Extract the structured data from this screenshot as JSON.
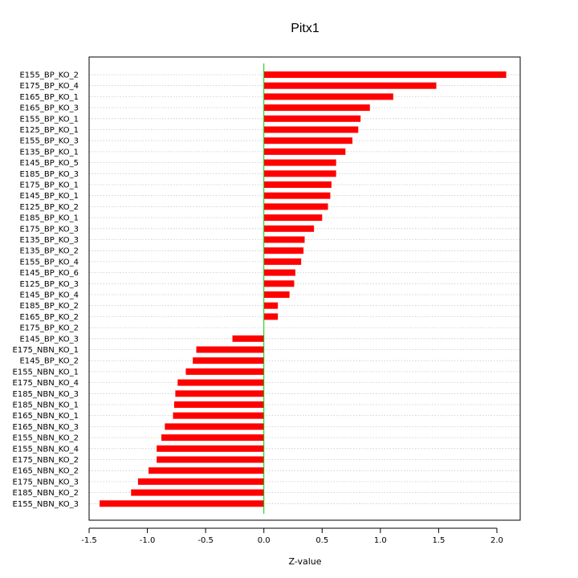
{
  "chart_data": {
    "type": "bar",
    "orientation": "horizontal",
    "title": "Pitx1",
    "xlabel": "Z-value",
    "ylabel": "",
    "xlim": [
      -1.5,
      2.2
    ],
    "xticks": [
      "-1.5",
      "-1.0",
      "-0.5",
      "0.0",
      "0.5",
      "1.0",
      "1.5",
      "2.0"
    ],
    "xtick_values": [
      -1.5,
      -1.0,
      -0.5,
      0.0,
      0.5,
      1.0,
      1.5,
      2.0
    ],
    "grid": "horizontal dotted",
    "bar_color": "#ff0000",
    "zero_line_color": "#00cc00",
    "categories": [
      "E155_BP_KO_2",
      "E175_BP_KO_4",
      "E165_BP_KO_1",
      "E165_BP_KO_3",
      "E155_BP_KO_1",
      "E125_BP_KO_1",
      "E155_BP_KO_3",
      "E135_BP_KO_1",
      "E145_BP_KO_5",
      "E185_BP_KO_3",
      "E175_BP_KO_1",
      "E145_BP_KO_1",
      "E125_BP_KO_2",
      "E185_BP_KO_1",
      "E175_BP_KO_3",
      "E135_BP_KO_3",
      "E135_BP_KO_2",
      "E155_BP_KO_4",
      "E145_BP_KO_6",
      "E125_BP_KO_3",
      "E145_BP_KO_4",
      "E185_BP_KO_2",
      "E165_BP_KO_2",
      "E175_BP_KO_2",
      "E145_BP_KO_3",
      "E175_NBN_KO_1",
      "E145_BP_KO_2",
      "E155_NBN_KO_1",
      "E175_NBN_KO_4",
      "E185_NBN_KO_3",
      "E185_NBN_KO_1",
      "E165_NBN_KO_1",
      "E165_NBN_KO_3",
      "E155_NBN_KO_2",
      "E155_NBN_KO_4",
      "E175_NBN_KO_2",
      "E165_NBN_KO_2",
      "E175_NBN_KO_3",
      "E185_NBN_KO_2",
      "E155_NBN_KO_3"
    ],
    "values": [
      2.08,
      1.48,
      1.11,
      0.91,
      0.83,
      0.81,
      0.76,
      0.7,
      0.62,
      0.62,
      0.58,
      0.57,
      0.55,
      0.5,
      0.43,
      0.35,
      0.34,
      0.32,
      0.27,
      0.26,
      0.22,
      0.12,
      0.12,
      0.0,
      -0.27,
      -0.58,
      -0.61,
      -0.67,
      -0.74,
      -0.76,
      -0.77,
      -0.78,
      -0.85,
      -0.88,
      -0.92,
      -0.92,
      -0.99,
      -1.08,
      -1.14,
      -1.41
    ]
  }
}
